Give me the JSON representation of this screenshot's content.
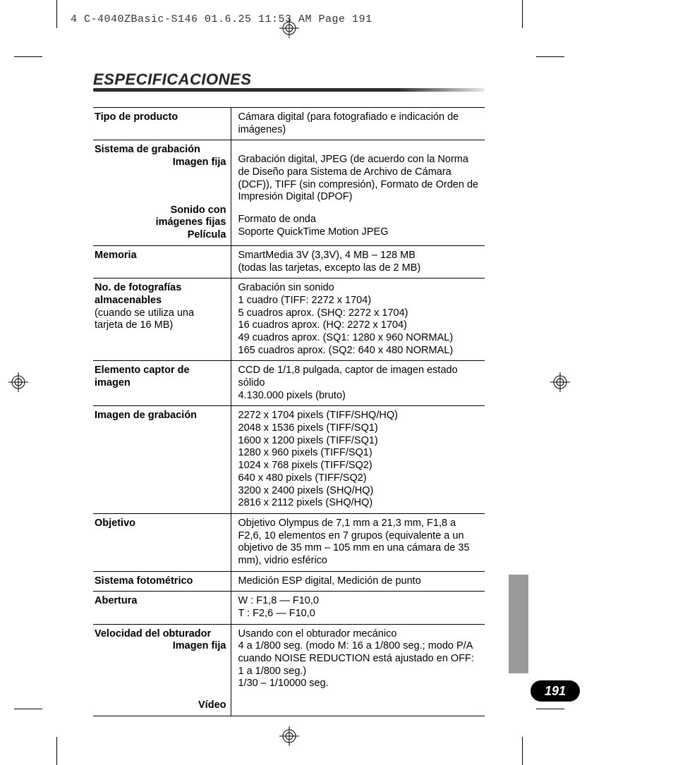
{
  "header": "4 C-4040ZBasic-S146  01.6.25 11:53 AM  Page 191",
  "title": "ESPECIFICACIONES",
  "page_number": "191",
  "rows": [
    {
      "key_lines": [
        {
          "t": "Tipo de producto",
          "align": "left"
        }
      ],
      "val_lines": [
        "Cámara digital (para fotografiado e indicación de imágenes)"
      ]
    },
    {
      "key_lines": [
        {
          "t": "Sistema de grabación",
          "align": "left"
        },
        {
          "t": "Imagen fija",
          "align": "right"
        },
        {
          "t": "",
          "align": "left",
          "gap": true
        },
        {
          "t": "Sonido con",
          "align": "right"
        },
        {
          "t": "imágenes fijas",
          "align": "right"
        },
        {
          "t": "Película",
          "align": "right"
        }
      ],
      "val_lines": [
        "",
        "Grabación digital, JPEG (de acuerdo con la Norma de Diseño para Sistema de Archivo de Cámara (DCF)), TIFF (sin compresión), Formato de Orden de Impresión Digital (DPOF)",
        "",
        "Formato de onda",
        "Soporte QuickTime Motion JPEG"
      ]
    },
    {
      "key_lines": [
        {
          "t": "Memoria",
          "align": "left"
        }
      ],
      "val_lines": [
        "SmartMedia 3V (3,3V), 4 MB – 128 MB",
        "(todas las tarjetas, excepto las de 2 MB)"
      ]
    },
    {
      "key_lines": [
        {
          "t": "No. de fotografías",
          "align": "left"
        },
        {
          "t": "almacenables",
          "align": "left"
        },
        {
          "t": " (cuando se utiliza una",
          "align": "left",
          "weight": "normal"
        },
        {
          "t": " tarjeta de 16 MB)",
          "align": "left",
          "weight": "normal"
        }
      ],
      "val_lines": [
        "Grabación sin sonido",
        "1 cuadro (TIFF: 2272 x 1704)",
        "5 cuadros aprox. (SHQ: 2272 x 1704)",
        "16 cuadros aprox. (HQ: 2272 x 1704)",
        "49 cuadros aprox. (SQ1: 1280 x 960 NORMAL)",
        "165 cuadros aprox. (SQ2: 640 x 480 NORMAL)"
      ]
    },
    {
      "key_lines": [
        {
          "t": "Elemento captor de",
          "align": "left"
        },
        {
          "t": "imagen",
          "align": "left"
        }
      ],
      "val_lines": [
        "CCD de 1/1,8 pulgada, captor de imagen estado sólido",
        "4.130.000 pixels (bruto)"
      ]
    },
    {
      "key_lines": [
        {
          "t": "Imagen de grabación",
          "align": "left"
        }
      ],
      "val_lines": [
        "2272 x 1704 pixels (TIFF/SHQ/HQ)",
        "2048 x 1536 pixels (TIFF/SQ1)",
        "1600 x 1200 pixels (TIFF/SQ1)",
        "1280 x 960 pixels (TIFF/SQ1)",
        "1024 x 768 pixels (TIFF/SQ2)",
        "640 x 480 pixels (TIFF/SQ2)",
        "3200 x 2400 pixels (SHQ/HQ)",
        "2816 x 2112 pixels (SHQ/HQ)"
      ]
    },
    {
      "key_lines": [
        {
          "t": "Objetivo",
          "align": "left"
        }
      ],
      "val_lines": [
        "Objetivo Olympus de 7,1 mm a 21,3 mm, F1,8 a F2,6, 10 elementos en 7 grupos (equivalente a un objetivo de 35 mm – 105 mm en una cámara de 35 mm), vidrio esférico"
      ]
    },
    {
      "key_lines": [
        {
          "t": "Sistema fotométrico",
          "align": "left"
        }
      ],
      "val_lines": [
        "Medición ESP digital, Medición de punto"
      ]
    },
    {
      "key_lines": [
        {
          "t": "Abertura",
          "align": "left"
        }
      ],
      "val_lines": [
        "W : F1,8 — F10,0",
        "T   : F2,6 — F10,0"
      ]
    },
    {
      "key_lines": [
        {
          "t": "Velocidad del obturador",
          "align": "left"
        },
        {
          "t": "Imagen fija",
          "align": "right"
        },
        {
          "t": "",
          "align": "left",
          "gap": true
        },
        {
          "t": "",
          "align": "left",
          "gap_small": true
        },
        {
          "t": "Vídeo",
          "align": "right"
        }
      ],
      "val_lines": [
        "Usando con el obturador mecánico",
        "4 a 1/800 seg. (modo M: 16 a 1/800 seg.; modo P/A cuando NOISE REDUCTION está ajustado en OFF: 1 a 1/800 seg.)",
        "1/30 – 1/10000 seg."
      ]
    }
  ],
  "marks": {
    "color": "#000000"
  }
}
